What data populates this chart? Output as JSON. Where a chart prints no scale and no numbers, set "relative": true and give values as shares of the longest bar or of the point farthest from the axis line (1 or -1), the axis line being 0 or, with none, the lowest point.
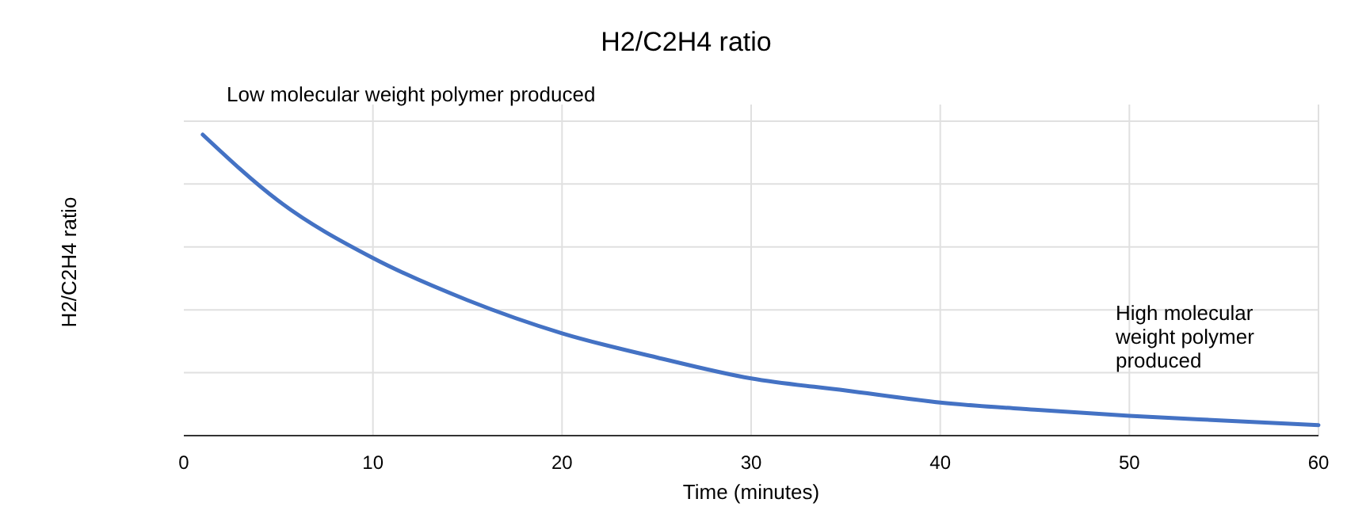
{
  "chart_data": {
    "type": "line",
    "title": "H2/C2H4 ratio",
    "xlabel": "Time (minutes)",
    "ylabel": "H2/C2H4 ratio",
    "relative": true,
    "x": [
      1,
      5,
      10,
      15,
      20,
      25,
      30,
      35,
      40,
      45,
      50,
      55,
      60
    ],
    "series": [
      {
        "color": "#4472c4",
        "values": [
          1,
          0.78,
          0.59,
          0.45,
          0.34,
          0.26,
          0.19,
          0.15,
          0.11,
          0.086,
          0.066,
          0.05,
          0.035
        ]
      }
    ],
    "xlim": [
      0,
      60
    ],
    "xticks": [
      0,
      10,
      20,
      30,
      40,
      50,
      60
    ],
    "grid": true,
    "annotations": [
      "Low molecular weight polymer produced",
      "High molecular weight polymer produced"
    ]
  }
}
